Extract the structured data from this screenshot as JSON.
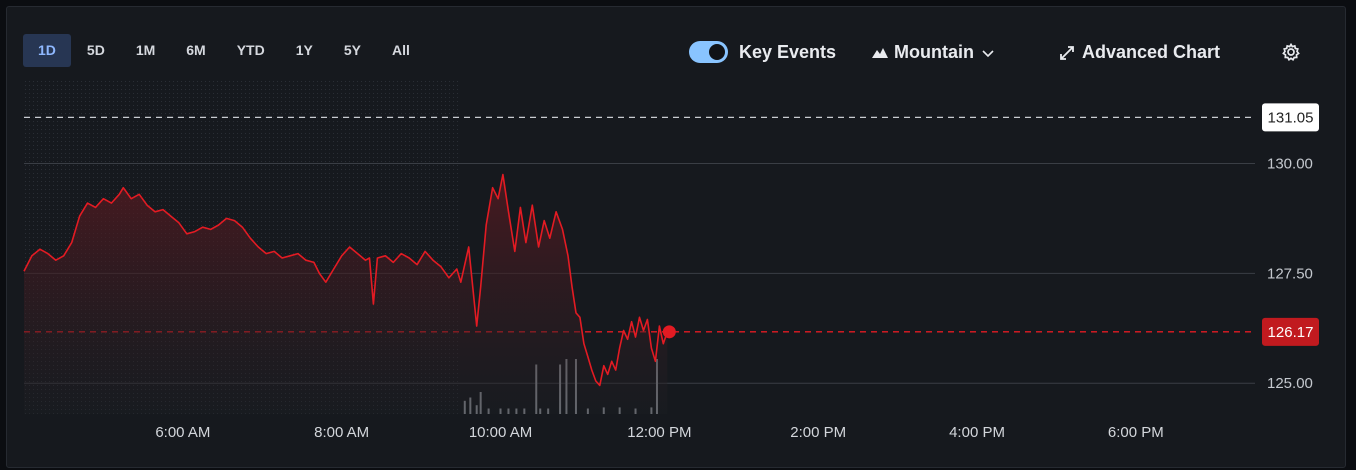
{
  "range_tabs": [
    "1D",
    "5D",
    "1M",
    "6M",
    "YTD",
    "1Y",
    "5Y",
    "All"
  ],
  "active_range": "1D",
  "controls": {
    "key_events_label": "Key Events",
    "key_events_on": true,
    "chart_type_label": "Mountain",
    "advanced_chart_label": "Advanced Chart"
  },
  "icons": {
    "chart_type": "mountain-icon",
    "dropdown": "chevron-down-icon",
    "advanced": "expand-arrows-icon",
    "settings": "gear-icon"
  },
  "colors": {
    "price_line": "#e31b23",
    "active_tab_bg": "#273653",
    "active_tab_text": "#8fb8ff",
    "toggle": "#89c4ff",
    "current_price_badge": "#c11a1f"
  },
  "chart_data": {
    "type": "area",
    "y_ticks": [
      "130.00",
      "127.50",
      "125.00"
    ],
    "x_ticks": [
      "6:00 AM",
      "8:00 AM",
      "10:00 AM",
      "12:00 PM",
      "2:00 PM",
      "4:00 PM",
      "6:00 PM"
    ],
    "ylim": [
      124.3,
      131.9
    ],
    "xlim_hours": [
      4.0,
      19.5
    ],
    "reference_lines": [
      {
        "label": "131.05",
        "value": 131.05,
        "style": "dashed",
        "color": "#c9ccd1",
        "badge_bg": "#ffffff",
        "badge_text": "#222222"
      },
      {
        "label": "126.17",
        "value": 126.17,
        "style": "dashed",
        "color": "#e31b23",
        "badge_bg": "#c11a1f",
        "badge_text": "#ffffff"
      }
    ],
    "pre_market_end": "9:30 AM",
    "series": [
      {
        "points": [
          [
            4.0,
            127.55
          ],
          [
            4.1,
            127.9
          ],
          [
            4.2,
            128.05
          ],
          [
            4.3,
            127.95
          ],
          [
            4.4,
            127.8
          ],
          [
            4.5,
            127.9
          ],
          [
            4.6,
            128.2
          ],
          [
            4.7,
            128.8
          ],
          [
            4.8,
            129.1
          ],
          [
            4.9,
            129.0
          ],
          [
            5.0,
            129.2
          ],
          [
            5.1,
            129.1
          ],
          [
            5.2,
            129.3
          ],
          [
            5.25,
            129.45
          ],
          [
            5.35,
            129.2
          ],
          [
            5.45,
            129.3
          ],
          [
            5.55,
            129.05
          ],
          [
            5.65,
            128.9
          ],
          [
            5.75,
            128.95
          ],
          [
            5.85,
            128.8
          ],
          [
            5.95,
            128.65
          ],
          [
            6.05,
            128.4
          ],
          [
            6.15,
            128.45
          ],
          [
            6.25,
            128.55
          ],
          [
            6.35,
            128.5
          ],
          [
            6.45,
            128.6
          ],
          [
            6.55,
            128.75
          ],
          [
            6.65,
            128.7
          ],
          [
            6.75,
            128.55
          ],
          [
            6.85,
            128.3
          ],
          [
            6.95,
            128.1
          ],
          [
            7.05,
            127.95
          ],
          [
            7.15,
            128.0
          ],
          [
            7.25,
            127.85
          ],
          [
            7.35,
            127.9
          ],
          [
            7.45,
            127.95
          ],
          [
            7.55,
            127.8
          ],
          [
            7.65,
            127.75
          ],
          [
            7.72,
            127.5
          ],
          [
            7.8,
            127.3
          ],
          [
            7.9,
            127.6
          ],
          [
            8.0,
            127.9
          ],
          [
            8.1,
            128.1
          ],
          [
            8.2,
            127.95
          ],
          [
            8.3,
            127.8
          ],
          [
            8.35,
            127.85
          ],
          [
            8.4,
            126.8
          ],
          [
            8.45,
            127.85
          ],
          [
            8.55,
            127.9
          ],
          [
            8.65,
            127.75
          ],
          [
            8.75,
            127.95
          ],
          [
            8.85,
            127.85
          ],
          [
            8.95,
            127.7
          ],
          [
            9.05,
            128.0
          ],
          [
            9.15,
            127.8
          ],
          [
            9.25,
            127.65
          ],
          [
            9.35,
            127.4
          ],
          [
            9.45,
            127.6
          ],
          [
            9.5,
            127.3
          ],
          [
            9.6,
            128.1
          ],
          [
            9.65,
            127.2
          ],
          [
            9.7,
            126.3
          ],
          [
            9.75,
            127.2
          ],
          [
            9.82,
            128.6
          ],
          [
            9.9,
            129.45
          ],
          [
            9.97,
            129.2
          ],
          [
            10.03,
            129.75
          ],
          [
            10.1,
            128.9
          ],
          [
            10.18,
            128.0
          ],
          [
            10.25,
            129.0
          ],
          [
            10.32,
            128.2
          ],
          [
            10.4,
            129.05
          ],
          [
            10.48,
            128.1
          ],
          [
            10.55,
            128.7
          ],
          [
            10.62,
            128.3
          ],
          [
            10.7,
            128.9
          ],
          [
            10.78,
            128.5
          ],
          [
            10.85,
            127.9
          ],
          [
            10.9,
            127.2
          ],
          [
            10.95,
            126.6
          ],
          [
            11.0,
            126.5
          ],
          [
            11.05,
            125.9
          ],
          [
            11.1,
            125.6
          ],
          [
            11.15,
            125.3
          ],
          [
            11.2,
            125.05
          ],
          [
            11.25,
            124.95
          ],
          [
            11.3,
            125.4
          ],
          [
            11.35,
            125.2
          ],
          [
            11.4,
            125.5
          ],
          [
            11.45,
            125.3
          ],
          [
            11.5,
            125.8
          ],
          [
            11.55,
            126.2
          ],
          [
            11.6,
            126.0
          ],
          [
            11.65,
            126.4
          ],
          [
            11.7,
            126.05
          ],
          [
            11.75,
            126.5
          ],
          [
            11.8,
            126.2
          ],
          [
            11.85,
            126.45
          ],
          [
            11.9,
            125.8
          ],
          [
            11.95,
            125.5
          ],
          [
            12.0,
            126.3
          ],
          [
            12.05,
            125.9
          ],
          [
            12.1,
            126.17
          ]
        ]
      }
    ],
    "volume": {
      "description": "intraday volume bars along the bottom, visible from 9:30 AM onward",
      "bars": [
        [
          9.55,
          0.12
        ],
        [
          9.62,
          0.15
        ],
        [
          9.7,
          0.08
        ],
        [
          9.75,
          0.2
        ],
        [
          9.85,
          0.05
        ],
        [
          10.0,
          0.05
        ],
        [
          10.1,
          0.05
        ],
        [
          10.2,
          0.05
        ],
        [
          10.3,
          0.05
        ],
        [
          10.45,
          0.45
        ],
        [
          10.5,
          0.05
        ],
        [
          10.6,
          0.05
        ],
        [
          10.75,
          0.45
        ],
        [
          10.83,
          0.5
        ],
        [
          10.95,
          0.5
        ],
        [
          11.1,
          0.05
        ],
        [
          11.3,
          0.06
        ],
        [
          11.5,
          0.06
        ],
        [
          11.7,
          0.05
        ],
        [
          11.9,
          0.06
        ],
        [
          11.97,
          0.5
        ]
      ]
    }
  }
}
